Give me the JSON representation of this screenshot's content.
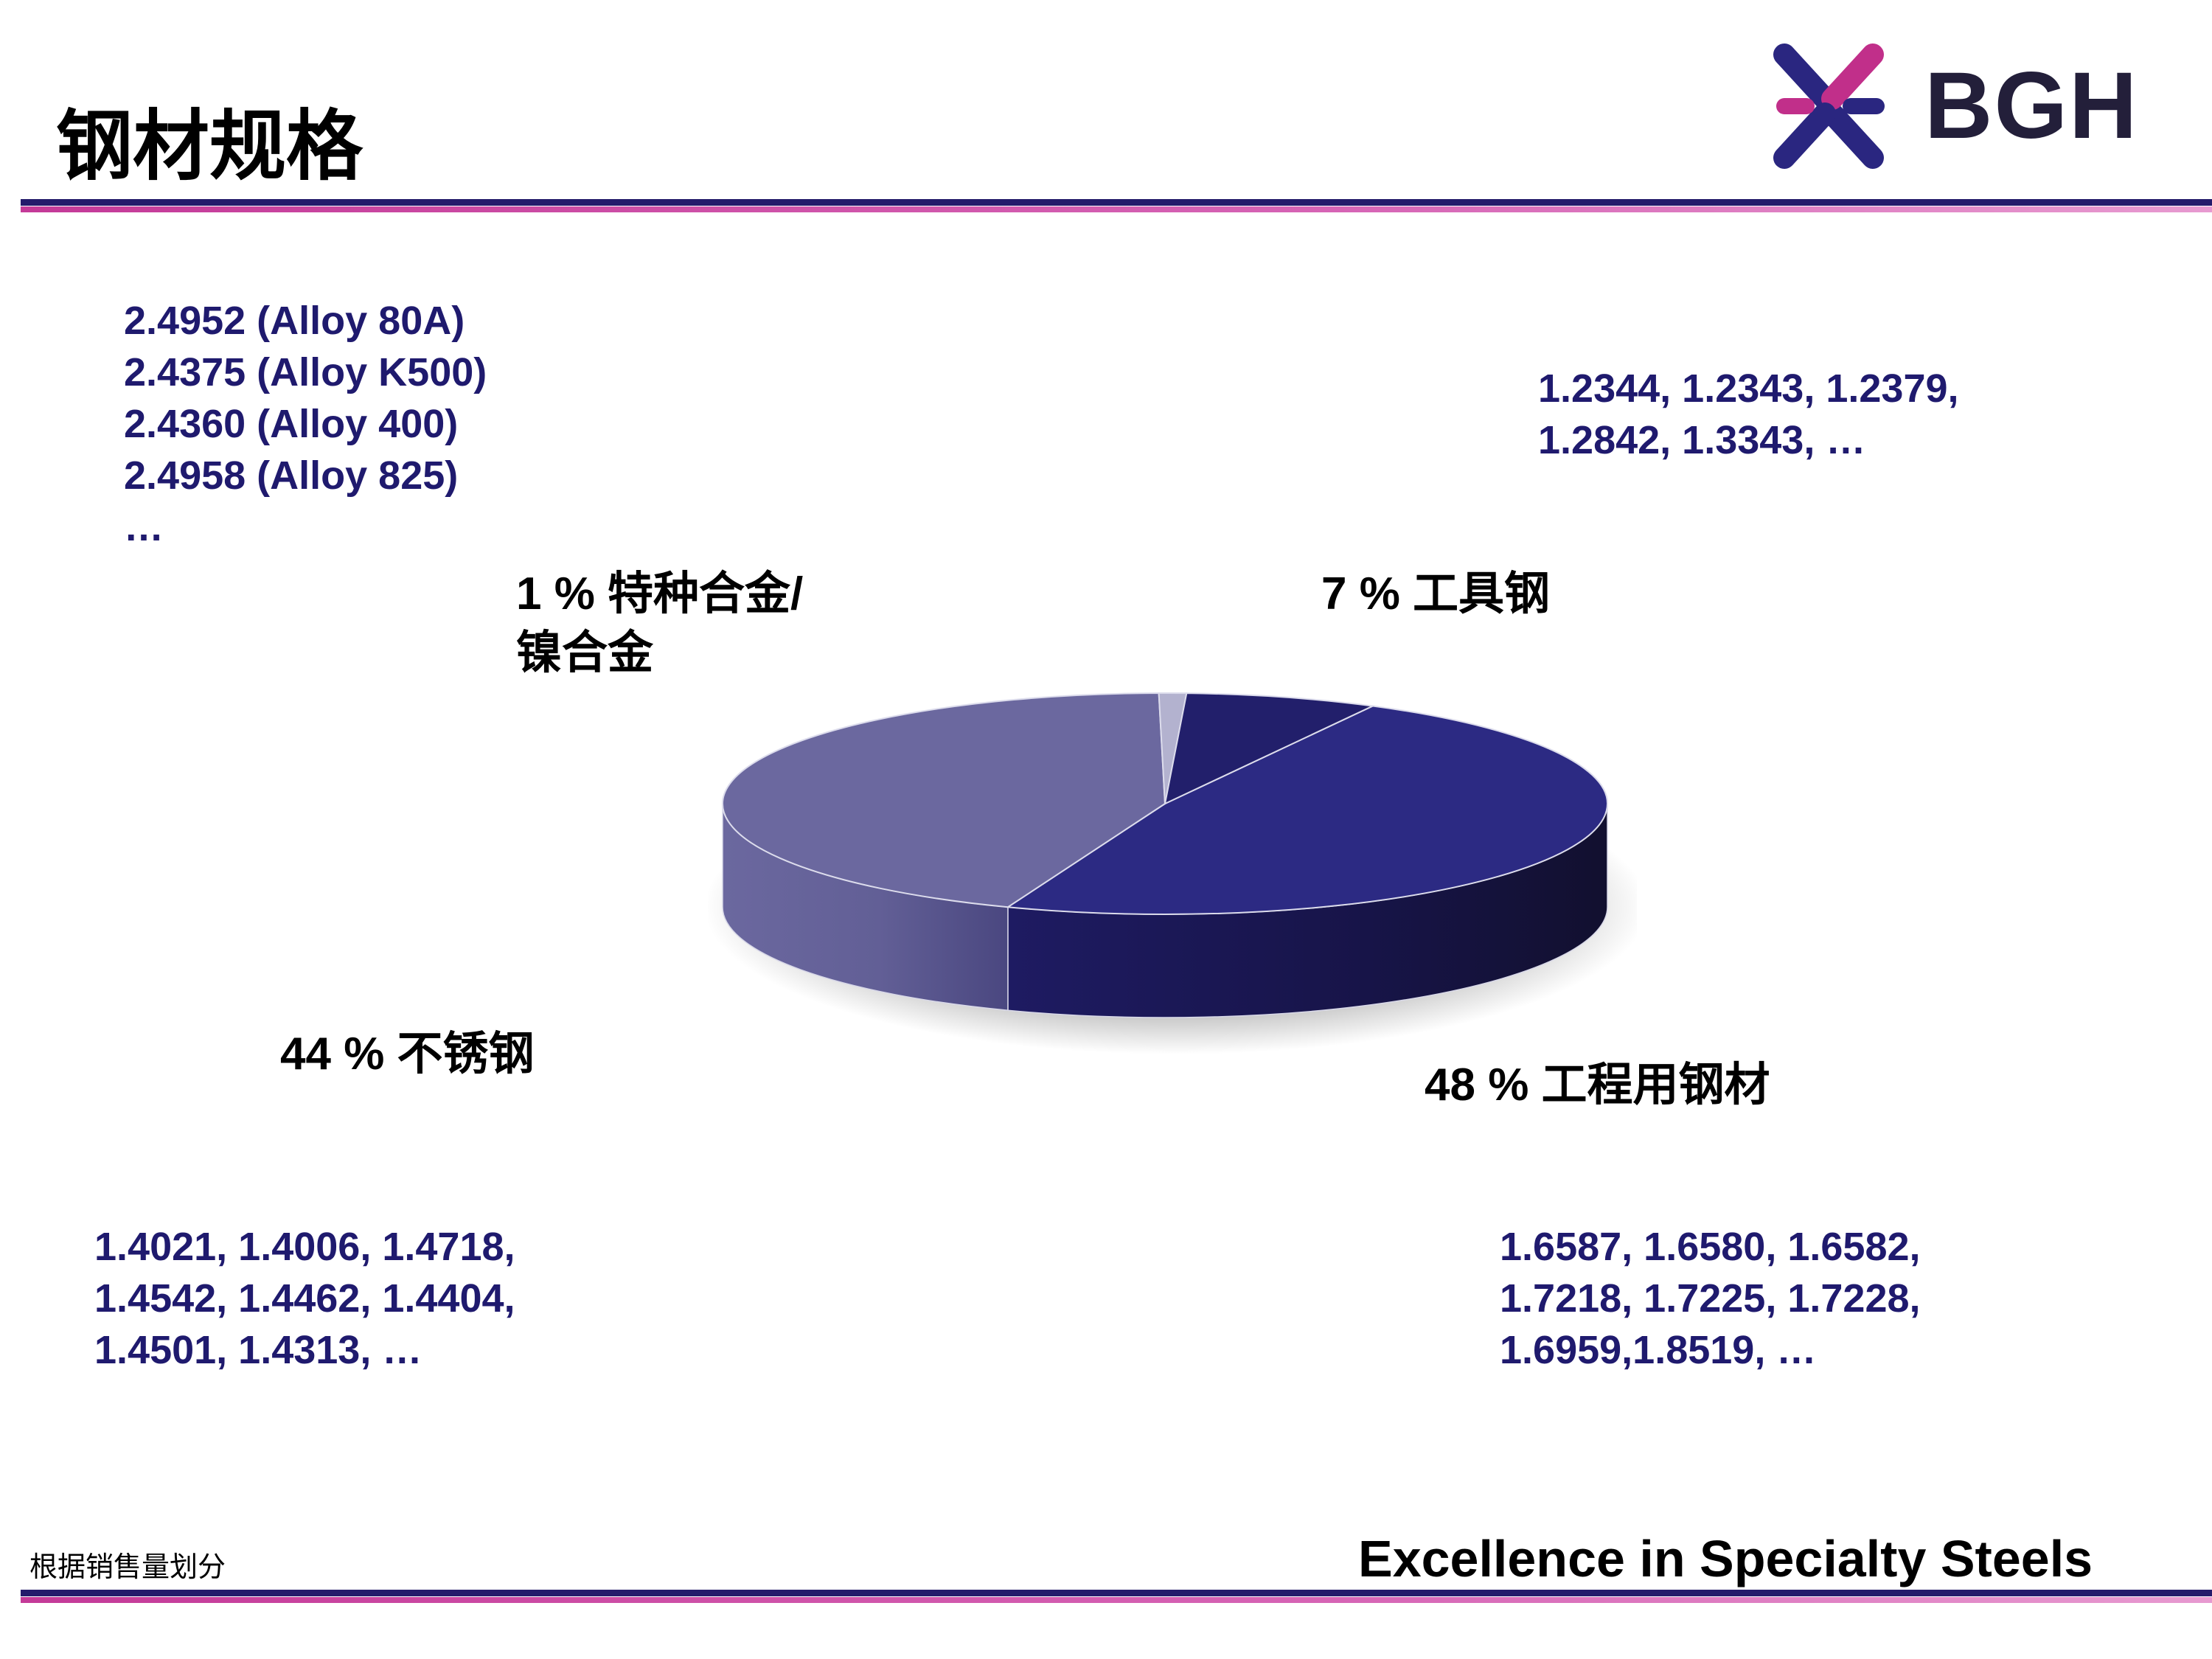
{
  "header": {
    "title": "钢材规格"
  },
  "logo": {
    "text": "BGH",
    "colors": {
      "navy": "#2a2680",
      "magenta": "#c12f8a"
    }
  },
  "chart_data": {
    "type": "pie",
    "style": "3d",
    "slices": [
      {
        "label": "48 % 工程用钢材",
        "value": 48,
        "color": "#2c2a83"
      },
      {
        "label": "44 % 不锈钢",
        "value": 44,
        "color": "#6b689f"
      },
      {
        "label": "1 % 特种合金/镍合金",
        "value": 1,
        "color": "#b3b2cf"
      },
      {
        "label": "7 % 工具钢",
        "value": 7,
        "color": "#221f6b"
      }
    ]
  },
  "labels": {
    "special_alloy": [
      "1 % 特种合金/",
      "镍合金"
    ],
    "tool_steel": "7 % 工具钢",
    "stainless": "44 % 不锈钢",
    "engineering": "48 % 工程用钢材"
  },
  "grades": {
    "special_alloy": [
      "2.4952 (Alloy 80A)",
      "2.4375 (Alloy K500)",
      "2.4360 (Alloy 400)",
      "2.4958 (Alloy 825)",
      "…"
    ],
    "tool_steel": [
      "1.2344, 1.2343, 1.2379,",
      "1.2842, 1.3343, …"
    ],
    "stainless": [
      "1.4021, 1.4006, 1.4718,",
      "1.4542, 1.4462, 1.4404,",
      "1.4501, 1.4313, …"
    ],
    "engineering": [
      "1.6587, 1.6580, 1.6582,",
      "1.7218, 1.7225, 1.7228,",
      "1.6959,1.8519, …"
    ]
  },
  "footer": {
    "note": "根据销售量划分",
    "tagline": "Excellence in Specialty Steels"
  }
}
